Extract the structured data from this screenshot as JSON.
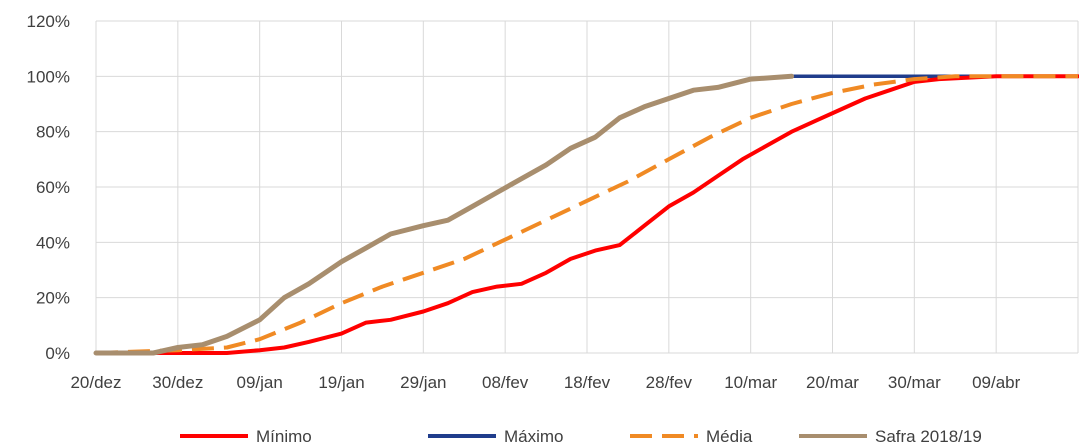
{
  "chart_data": {
    "type": "line",
    "title": "",
    "xlabel": "",
    "ylabel": "",
    "x_start": "20/dez",
    "x_end": "19/abr",
    "x_tick_labels": [
      "20/dez",
      "30/dez",
      "09/jan",
      "19/jan",
      "29/jan",
      "08/fev",
      "18/fev",
      "28/fev",
      "10/mar",
      "20/mar",
      "30/mar",
      "09/abr"
    ],
    "y_ticks": [
      0,
      20,
      40,
      60,
      80,
      100,
      120
    ],
    "y_tick_labels": [
      "0%",
      "20%",
      "40%",
      "60%",
      "80%",
      "100%",
      "120%"
    ],
    "ylim": [
      0,
      120
    ],
    "grid": "vertical and horizontal",
    "legend_position": "bottom",
    "series": [
      {
        "name": "Mínimo",
        "color": "#FF0000",
        "dash": "solid",
        "points": [
          [
            "20/dez",
            0
          ],
          [
            "30/dez",
            0
          ],
          [
            "05/jan",
            0
          ],
          [
            "09/jan",
            1
          ],
          [
            "12/jan",
            2
          ],
          [
            "15/jan",
            4
          ],
          [
            "19/jan",
            7
          ],
          [
            "22/jan",
            11
          ],
          [
            "25/jan",
            12
          ],
          [
            "29/jan",
            15
          ],
          [
            "01/fev",
            18
          ],
          [
            "04/fev",
            22
          ],
          [
            "07/fev",
            24
          ],
          [
            "10/fev",
            25
          ],
          [
            "13/fev",
            29
          ],
          [
            "16/fev",
            34
          ],
          [
            "19/fev",
            37
          ],
          [
            "22/fev",
            39
          ],
          [
            "25/fev",
            46
          ],
          [
            "28/fev",
            53
          ],
          [
            "03/mar",
            58
          ],
          [
            "06/mar",
            64
          ],
          [
            "09/mar",
            70
          ],
          [
            "12/mar",
            75
          ],
          [
            "15/mar",
            80
          ],
          [
            "18/mar",
            84
          ],
          [
            "21/mar",
            88
          ],
          [
            "24/mar",
            92
          ],
          [
            "27/mar",
            95
          ],
          [
            "30/mar",
            98
          ],
          [
            "02/abr",
            99
          ],
          [
            "09/abr",
            100
          ],
          [
            "19/abr",
            100
          ]
        ]
      },
      {
        "name": "Máximo",
        "color": "#203D8C",
        "dash": "solid",
        "points": [
          [
            "20/dez",
            0
          ],
          [
            "27/dez",
            0
          ],
          [
            "30/dez",
            2
          ],
          [
            "02/jan",
            3
          ],
          [
            "05/jan",
            6
          ],
          [
            "09/jan",
            12
          ],
          [
            "12/jan",
            20
          ],
          [
            "15/jan",
            25
          ],
          [
            "19/jan",
            33
          ],
          [
            "22/jan",
            38
          ],
          [
            "25/jan",
            43
          ],
          [
            "29/jan",
            46
          ],
          [
            "01/fev",
            48
          ],
          [
            "04/fev",
            53
          ],
          [
            "07/fev",
            58
          ],
          [
            "10/fev",
            63
          ],
          [
            "13/fev",
            68
          ],
          [
            "16/fev",
            74
          ],
          [
            "19/fev",
            78
          ],
          [
            "22/fev",
            85
          ],
          [
            "25/fev",
            89
          ],
          [
            "28/fev",
            92
          ],
          [
            "03/mar",
            95
          ],
          [
            "06/mar",
            96
          ],
          [
            "10/mar",
            99
          ],
          [
            "15/mar",
            100
          ],
          [
            "19/abr",
            100
          ]
        ]
      },
      {
        "name": "Média",
        "color": "#F08A24",
        "dash": "dashed",
        "points": [
          [
            "20/dez",
            0
          ],
          [
            "30/dez",
            1
          ],
          [
            "05/jan",
            2
          ],
          [
            "09/jan",
            5
          ],
          [
            "14/jan",
            11
          ],
          [
            "19/jan",
            18
          ],
          [
            "24/jan",
            24
          ],
          [
            "29/jan",
            29
          ],
          [
            "03/fev",
            34
          ],
          [
            "08/fev",
            41
          ],
          [
            "13/fev",
            48
          ],
          [
            "18/fev",
            55
          ],
          [
            "23/fev",
            62
          ],
          [
            "28/fev",
            70
          ],
          [
            "05/mar",
            78
          ],
          [
            "10/mar",
            85
          ],
          [
            "15/mar",
            90
          ],
          [
            "20/mar",
            94
          ],
          [
            "25/mar",
            97
          ],
          [
            "30/mar",
            99
          ],
          [
            "04/abr",
            100
          ],
          [
            "19/abr",
            100
          ]
        ]
      },
      {
        "name": "Safra 2018/19",
        "color": "#A88E6E",
        "dash": "solid",
        "points": [
          [
            "20/dez",
            0
          ],
          [
            "27/dez",
            0
          ],
          [
            "30/dez",
            2
          ],
          [
            "02/jan",
            3
          ],
          [
            "05/jan",
            6
          ],
          [
            "09/jan",
            12
          ],
          [
            "12/jan",
            20
          ],
          [
            "15/jan",
            25
          ],
          [
            "19/jan",
            33
          ],
          [
            "22/jan",
            38
          ],
          [
            "25/jan",
            43
          ],
          [
            "29/jan",
            46
          ],
          [
            "01/fev",
            48
          ],
          [
            "04/fev",
            53
          ],
          [
            "07/fev",
            58
          ],
          [
            "10/fev",
            63
          ],
          [
            "13/fev",
            68
          ],
          [
            "16/fev",
            74
          ],
          [
            "19/fev",
            78
          ],
          [
            "22/fev",
            85
          ],
          [
            "25/fev",
            89
          ],
          [
            "28/fev",
            92
          ],
          [
            "03/mar",
            95
          ],
          [
            "06/mar",
            96
          ],
          [
            "10/mar",
            99
          ],
          [
            "15/mar",
            100
          ]
        ]
      }
    ]
  }
}
